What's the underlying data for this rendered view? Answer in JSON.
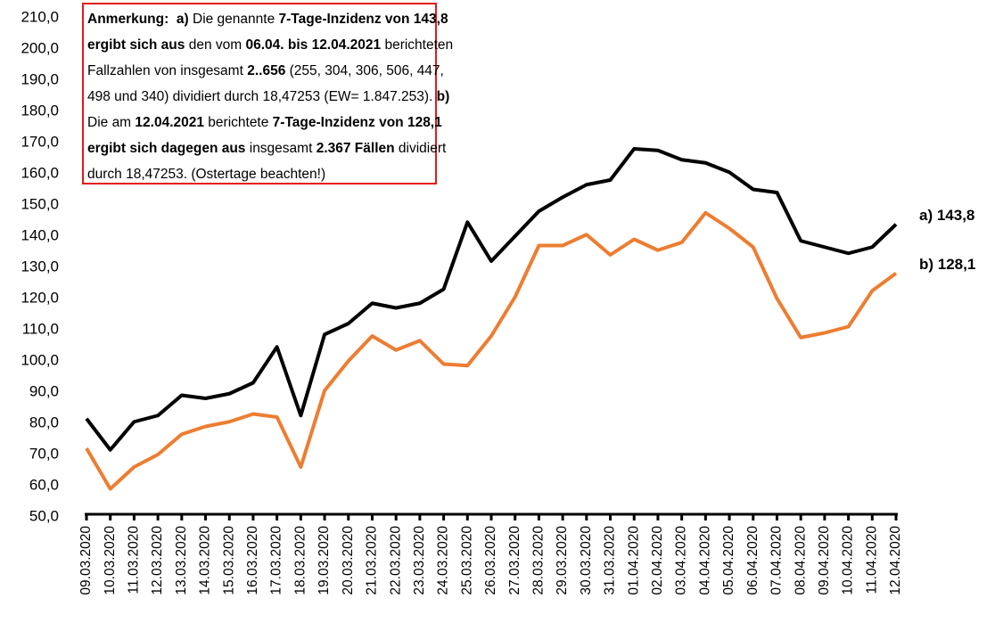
{
  "chart_data": {
    "type": "line",
    "categories": [
      "09.03.2020",
      "10.03.2020",
      "11.03.2020",
      "12.03.2020",
      "13.03.2020",
      "14.03.2020",
      "15.03.2020",
      "16.03.2020",
      "17.03.2020",
      "18.03.2020",
      "19.03.2020",
      "20.03.2020",
      "21.03.2020",
      "22.03.2020",
      "23.03.2020",
      "24.03.2020",
      "25.03.2020",
      "26.03.2020",
      "27.03.2020",
      "28.03.2020",
      "29.03.2020",
      "30.03.2020",
      "31.03.2020",
      "01.04.2020",
      "02.04.2020",
      "03.04.2020",
      "04.04.2020",
      "05.04.2020",
      "06.04.2020",
      "07.04.2020",
      "08.04.2020",
      "09.04.2020",
      "10.04.2020",
      "11.04.2020",
      "12.04.2020"
    ],
    "series": [
      {
        "color": "#000000",
        "end_label": "a) 143,8",
        "values": [
          81.5,
          71.5,
          80.5,
          82.5,
          89,
          88,
          89.5,
          93,
          104.5,
          82.5,
          108.5,
          112,
          118.5,
          117,
          118.5,
          123,
          144.5,
          132,
          140,
          148,
          152.5,
          156.5,
          158,
          168,
          167.5,
          164.5,
          163.5,
          160.5,
          155,
          154,
          138.5,
          136.5,
          134.5,
          136.5,
          143.8
        ]
      },
      {
        "color": "#ed7d31",
        "end_label": "b) 128,1",
        "values": [
          72,
          59,
          66,
          70,
          76.5,
          79,
          80.5,
          83,
          82,
          66,
          90.5,
          100,
          108,
          103.5,
          106.5,
          99,
          98.5,
          108,
          120.5,
          137,
          137,
          140.5,
          134,
          139,
          135.5,
          138,
          147.5,
          142.5,
          136.5,
          120,
          107.5,
          109,
          111,
          122.5,
          128.1
        ]
      }
    ],
    "ylim": [
      50,
      210
    ],
    "yticks": [
      {
        "value": 50,
        "label": "50,0"
      },
      {
        "value": 60,
        "label": "60,0"
      },
      {
        "value": 70,
        "label": "70,0"
      },
      {
        "value": 80,
        "label": "80,0"
      },
      {
        "value": 90,
        "label": "90,0"
      },
      {
        "value": 100,
        "label": "100,0"
      },
      {
        "value": 110,
        "label": "110,0"
      },
      {
        "value": 120,
        "label": "120,0"
      },
      {
        "value": 130,
        "label": "130,0"
      },
      {
        "value": 140,
        "label": "140,0"
      },
      {
        "value": 150,
        "label": "150,0"
      },
      {
        "value": 160,
        "label": "160,0"
      },
      {
        "value": 170,
        "label": "170,0"
      },
      {
        "value": 180,
        "label": "180,0"
      },
      {
        "value": 190,
        "label": "190,0"
      },
      {
        "value": 200,
        "label": "200,0"
      },
      {
        "value": 210,
        "label": "210,0"
      }
    ],
    "grid": false,
    "annotation": [
      [
        {
          "text": "Anmerkung:  a)",
          "bold": true
        },
        {
          "text": " Die genannte ",
          "bold": false
        },
        {
          "text": "7-Tage-Inzidenz von 143,8",
          "bold": true
        }
      ],
      [
        {
          "text": "ergibt sich aus",
          "bold": true
        },
        {
          "text": " den vom ",
          "bold": false
        },
        {
          "text": "06.04. bis 12.04.2021",
          "bold": true
        },
        {
          "text": " berichteten",
          "bold": false
        }
      ],
      [
        {
          "text": "Fallzahlen von insgesamt ",
          "bold": false
        },
        {
          "text": "2..656",
          "bold": true
        },
        {
          "text": " (255, 304, 306, 506, 447,",
          "bold": false
        }
      ],
      [
        {
          "text": "498 und 340) dividiert durch 18,47253 (EW= 1.847.253). ",
          "bold": false
        },
        {
          "text": "b)",
          "bold": true
        }
      ],
      [
        {
          "text": "Die am ",
          "bold": false
        },
        {
          "text": "12.04.2021",
          "bold": true
        },
        {
          "text": " berichtete ",
          "bold": false
        },
        {
          "text": "7-Tage-Inzidenz von 128,1",
          "bold": true
        }
      ],
      [
        {
          "text": "ergibt sich dagegen aus",
          "bold": true
        },
        {
          "text": " insgesamt ",
          "bold": false
        },
        {
          "text": "2.367 Fällen",
          "bold": true
        },
        {
          "text": " dividiert",
          "bold": false
        }
      ],
      [
        {
          "text": "durch 18,47253. (Ostertage beachten!)",
          "bold": false
        }
      ]
    ]
  }
}
